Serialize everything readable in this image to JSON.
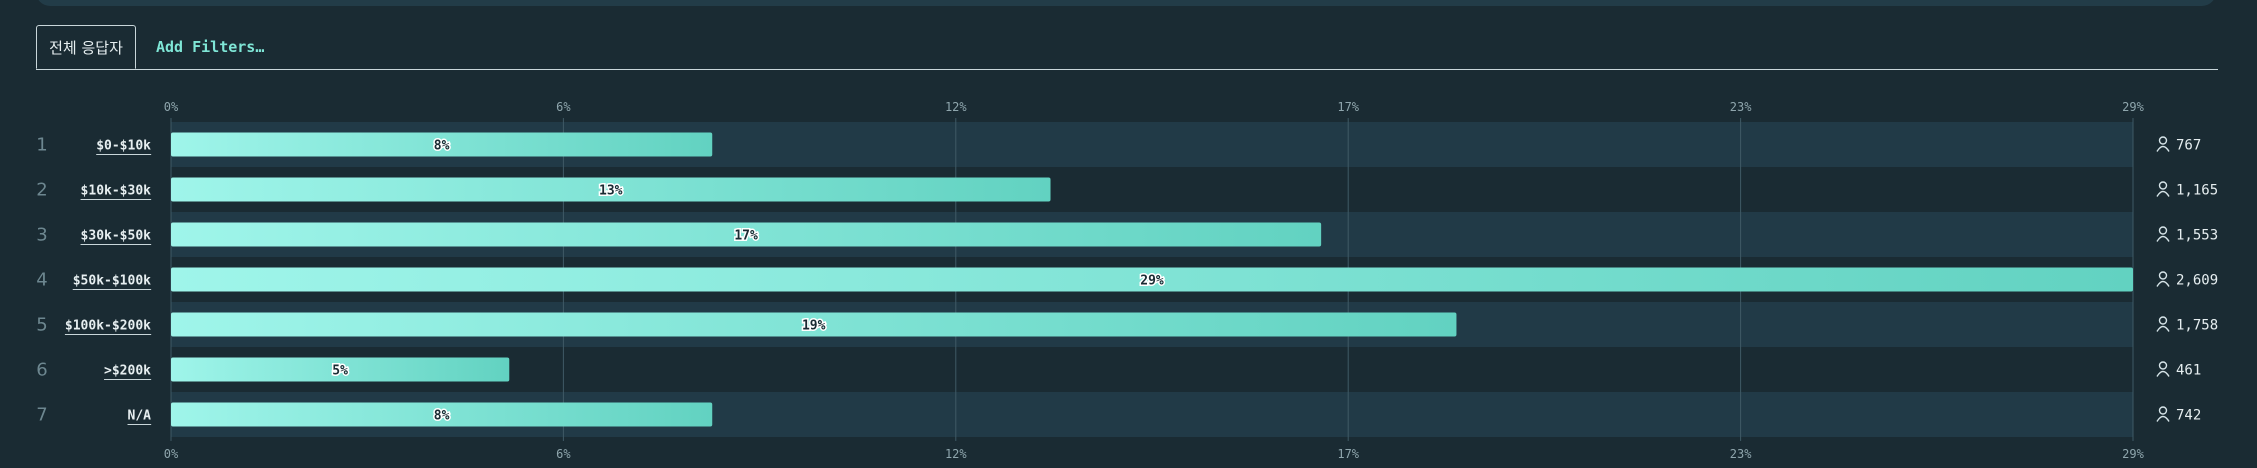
{
  "tabs": {
    "active_label": "전체 응답자",
    "filter_label": "Add Filters…"
  },
  "colors": {
    "background": "#1a2b33",
    "row_alt": "#213a47",
    "bar_start": "#9ff5ea",
    "bar_end": "#62d2c1",
    "grid": "#3f5a66"
  },
  "icons": {
    "count": "person-icon"
  },
  "chart_data": {
    "type": "bar",
    "orientation": "horizontal",
    "categories": [
      "$0-$10k",
      "$10k-$30k",
      "$30k-$50k",
      "$50k-$100k",
      "$100k-$200k",
      ">$200k",
      "N/A"
    ],
    "row_numbers": [
      "1",
      "2",
      "3",
      "4",
      "5",
      "6",
      "7"
    ],
    "values": [
      8,
      13,
      17,
      29,
      19,
      5,
      8
    ],
    "value_labels": [
      "8%",
      "13%",
      "17%",
      "29%",
      "19%",
      "5%",
      "8%"
    ],
    "counts": [
      "767",
      "1,165",
      "1,553",
      "2,609",
      "1,758",
      "461",
      "742"
    ],
    "x_ticks": [
      "0%",
      "6%",
      "12%",
      "17%",
      "23%",
      "29%"
    ],
    "xlim": [
      0,
      29
    ],
    "grid": true,
    "xlabel": "",
    "ylabel": ""
  }
}
